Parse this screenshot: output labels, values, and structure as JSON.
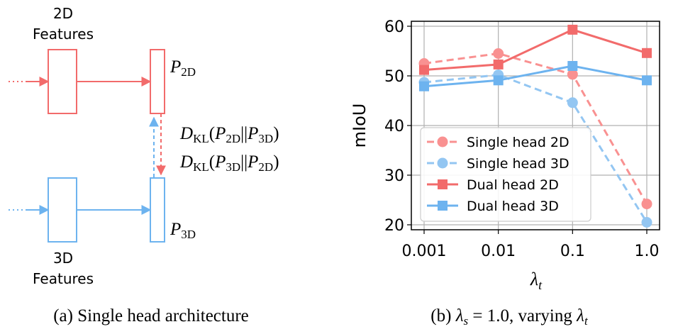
{
  "diagram": {
    "label_2d_features": [
      "2D",
      "Features"
    ],
    "label_3d_features": [
      "3D",
      "Features"
    ],
    "p2d": {
      "main": "P",
      "sub": "2D"
    },
    "p3d": {
      "main": "P",
      "sub": "3D"
    },
    "kl_top": {
      "D": "D",
      "KL": "KL",
      "open": "(",
      "a": "P",
      "a_sub": "2D",
      "sep": "||",
      "b": "P",
      "b_sub": "3D",
      "close": ")"
    },
    "kl_bottom": {
      "D": "D",
      "KL": "KL",
      "open": "(",
      "a": "P",
      "a_sub": "3D",
      "sep": "||",
      "b": "P",
      "b_sub": "2D",
      "close": ")"
    },
    "caption": "(a) Single head architecture",
    "colors": {
      "red": "#f26b6b",
      "blue": "#6db3ef"
    }
  },
  "chart_data": {
    "type": "line",
    "categories": [
      "0.001",
      "0.01",
      "0.1",
      "1.0"
    ],
    "ylabel": "mIoU",
    "xlabel": {
      "main": "λ",
      "sub": "t"
    },
    "ylim": [
      19,
      61
    ],
    "yticks": [
      20,
      30,
      40,
      50,
      60
    ],
    "grid": true,
    "legend_position": "bottom-left",
    "series": [
      {
        "name": "Single head 2D",
        "values": [
          52.5,
          54.5,
          50.3,
          24.2
        ],
        "color": "#f99191",
        "dashed": true,
        "marker": "circle"
      },
      {
        "name": "Single head 3D",
        "values": [
          48.7,
          50.2,
          44.6,
          20.5
        ],
        "color": "#93c6f2",
        "dashed": true,
        "marker": "circle"
      },
      {
        "name": "Dual head 2D",
        "values": [
          51.2,
          52.3,
          59.3,
          54.6
        ],
        "color": "#f26b6b",
        "dashed": false,
        "marker": "square"
      },
      {
        "name": "Dual head 3D",
        "values": [
          47.9,
          49.1,
          52.0,
          49.1
        ],
        "color": "#6db3ef",
        "dashed": false,
        "marker": "square"
      }
    ],
    "caption": {
      "prefix": "(b) ",
      "lam_s": "λ",
      "lam_s_sub": "s",
      "eq": " = 1.0, varying ",
      "lam_t": "λ",
      "lam_t_sub": "t"
    }
  }
}
